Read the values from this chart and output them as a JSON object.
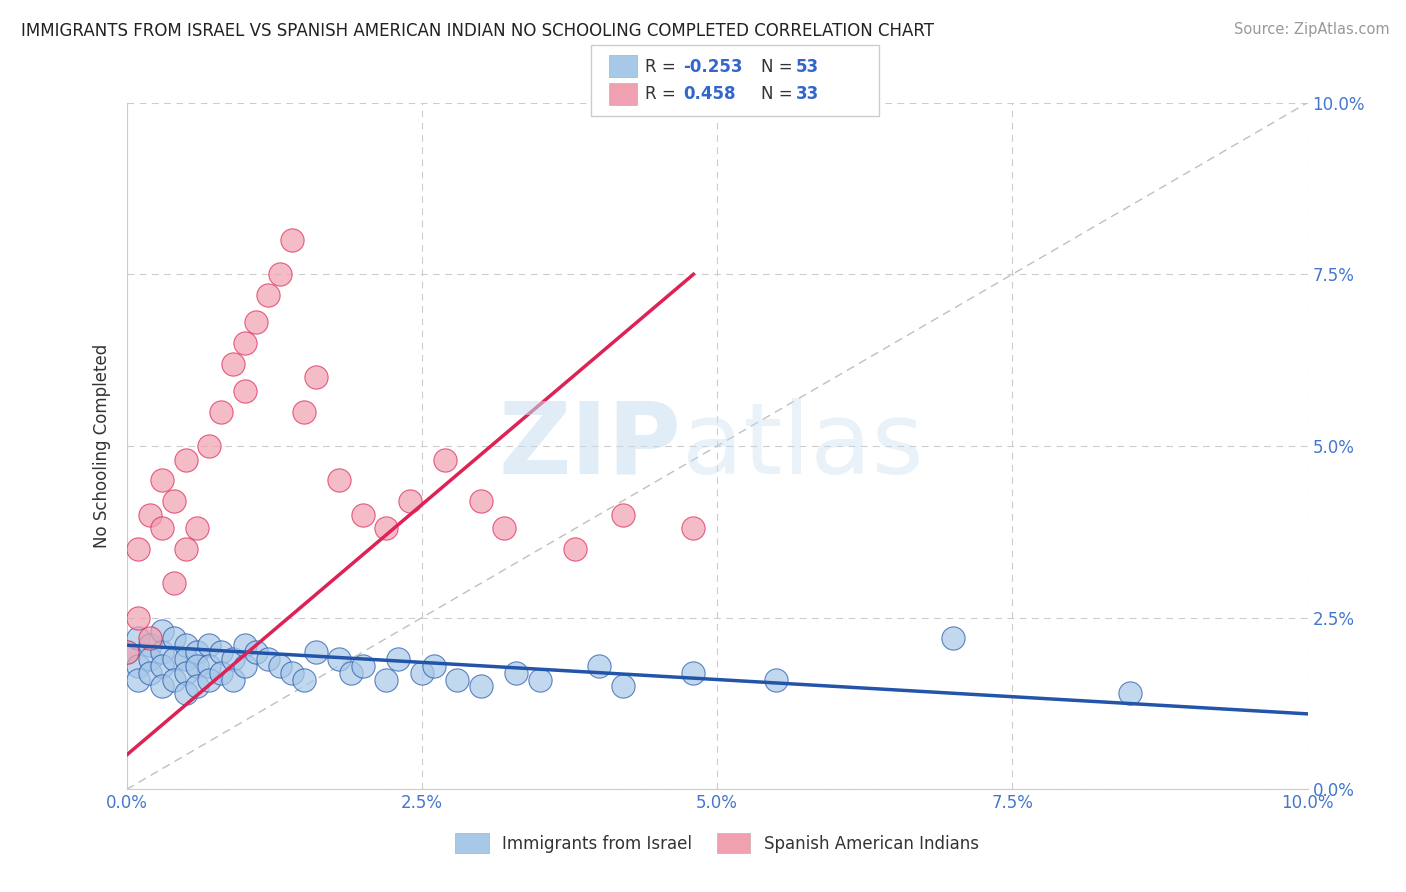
{
  "title": "IMMIGRANTS FROM ISRAEL VS SPANISH AMERICAN INDIAN NO SCHOOLING COMPLETED CORRELATION CHART",
  "source": "Source: ZipAtlas.com",
  "ylabel": "No Schooling Completed",
  "series1_label": "Immigrants from Israel",
  "series2_label": "Spanish American Indians",
  "series1_color": "#a8c8e8",
  "series2_color": "#f0a0b0",
  "trend1_color": "#2255aa",
  "trend2_color": "#dd2255",
  "watermark_zip": "ZIP",
  "watermark_atlas": "atlas",
  "r1": "-0.253",
  "n1": "53",
  "r2": "0.458",
  "n2": "33",
  "series1_x": [
    0.0,
    0.001,
    0.001,
    0.001,
    0.002,
    0.002,
    0.002,
    0.003,
    0.003,
    0.003,
    0.003,
    0.004,
    0.004,
    0.004,
    0.005,
    0.005,
    0.005,
    0.005,
    0.006,
    0.006,
    0.006,
    0.007,
    0.007,
    0.007,
    0.008,
    0.008,
    0.009,
    0.009,
    0.01,
    0.01,
    0.011,
    0.012,
    0.013,
    0.014,
    0.015,
    0.016,
    0.018,
    0.019,
    0.02,
    0.022,
    0.023,
    0.025,
    0.026,
    0.028,
    0.03,
    0.033,
    0.035,
    0.04,
    0.042,
    0.048,
    0.055,
    0.07,
    0.085
  ],
  "series1_y": [
    0.02,
    0.022,
    0.018,
    0.016,
    0.021,
    0.019,
    0.017,
    0.023,
    0.02,
    0.018,
    0.015,
    0.022,
    0.019,
    0.016,
    0.021,
    0.019,
    0.017,
    0.014,
    0.02,
    0.018,
    0.015,
    0.021,
    0.018,
    0.016,
    0.02,
    0.017,
    0.019,
    0.016,
    0.021,
    0.018,
    0.02,
    0.019,
    0.018,
    0.017,
    0.016,
    0.02,
    0.019,
    0.017,
    0.018,
    0.016,
    0.019,
    0.017,
    0.018,
    0.016,
    0.015,
    0.017,
    0.016,
    0.018,
    0.015,
    0.017,
    0.016,
    0.022,
    0.014
  ],
  "series2_x": [
    0.0,
    0.001,
    0.001,
    0.002,
    0.002,
    0.003,
    0.003,
    0.004,
    0.004,
    0.005,
    0.005,
    0.006,
    0.007,
    0.008,
    0.009,
    0.01,
    0.01,
    0.011,
    0.012,
    0.013,
    0.014,
    0.015,
    0.016,
    0.018,
    0.02,
    0.022,
    0.024,
    0.027,
    0.03,
    0.032,
    0.038,
    0.042,
    0.048
  ],
  "series2_y": [
    0.02,
    0.025,
    0.035,
    0.022,
    0.04,
    0.038,
    0.045,
    0.03,
    0.042,
    0.035,
    0.048,
    0.038,
    0.05,
    0.055,
    0.062,
    0.058,
    0.065,
    0.068,
    0.072,
    0.075,
    0.08,
    0.055,
    0.06,
    0.045,
    0.04,
    0.038,
    0.042,
    0.048,
    0.042,
    0.038,
    0.035,
    0.04,
    0.038
  ]
}
